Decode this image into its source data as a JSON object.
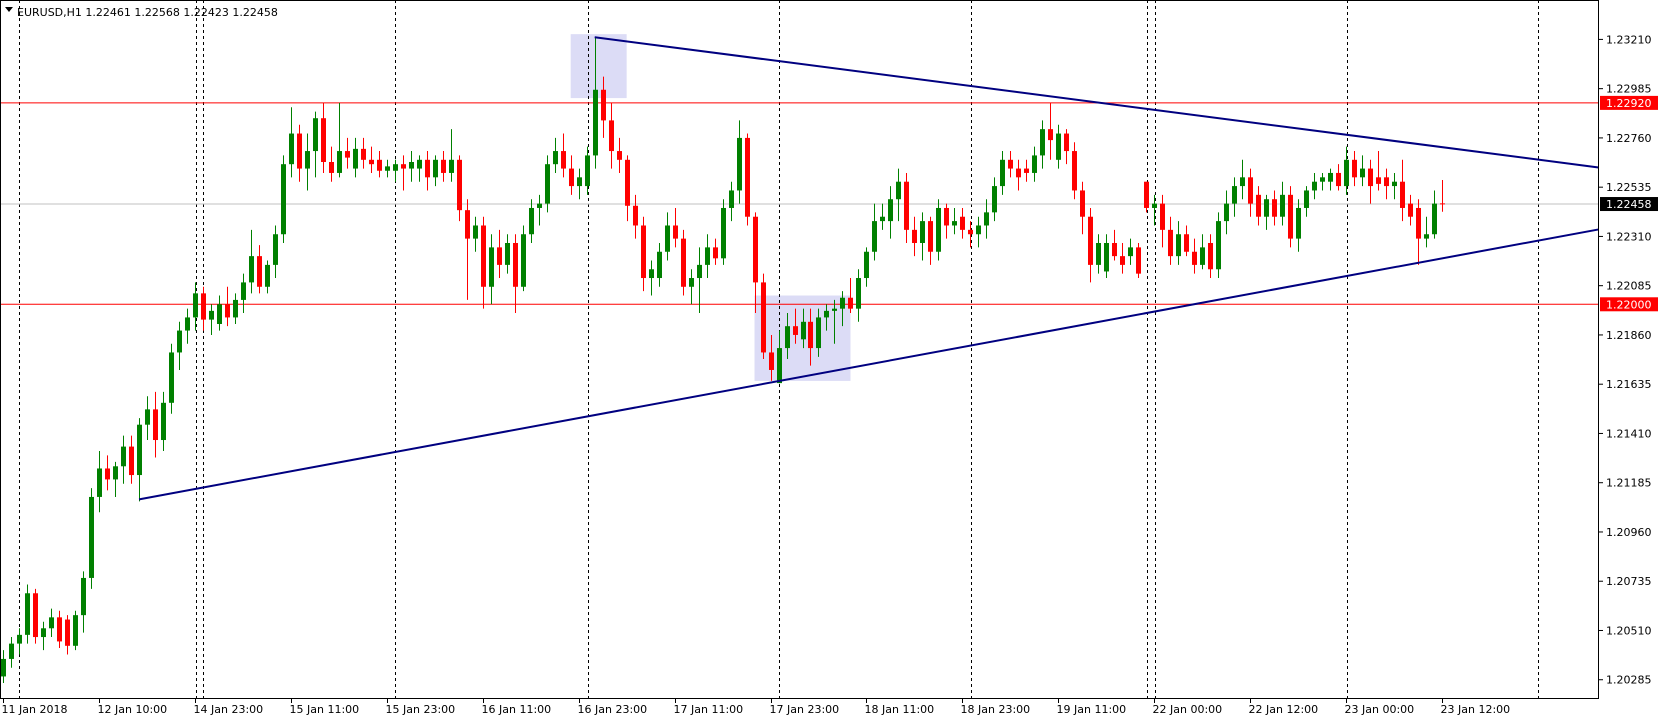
{
  "chart_data": {
    "type": "candlestick",
    "title": "EURUSD,H1  1.22461 1.22568 1.22423 1.22458",
    "categories": [
      "11 Jan 2018",
      null,
      null,
      null,
      null,
      null,
      null,
      null,
      null,
      null,
      null,
      null,
      "12 Jan 10:00",
      null,
      null,
      null,
      null,
      null,
      null,
      null,
      null,
      null,
      null,
      null,
      "14 Jan 23:00",
      null,
      null,
      null,
      null,
      null,
      null,
      null,
      null,
      null,
      null,
      null,
      "15 Jan 11:00",
      null,
      null,
      null,
      null,
      null,
      null,
      null,
      null,
      null,
      null,
      null,
      "15 Jan 23:00",
      null,
      null,
      null,
      null,
      null,
      null,
      null,
      null,
      null,
      null,
      null,
      "16 Jan 11:00",
      null,
      null,
      null,
      null,
      null,
      null,
      null,
      null,
      null,
      null,
      null,
      "16 Jan 23:00",
      null,
      null,
      null,
      null,
      null,
      null,
      null,
      null,
      null,
      null,
      null,
      "17 Jan 11:00",
      null,
      null,
      null,
      null,
      null,
      null,
      null,
      null,
      null,
      null,
      null,
      "17 Jan 23:00",
      null,
      null,
      null,
      null,
      null,
      null,
      null,
      null,
      null,
      null,
      null,
      "18 Jan 11:00",
      null,
      null,
      null,
      null,
      null,
      null,
      null,
      null,
      null,
      null,
      null,
      "18 Jan 23:00",
      null,
      null,
      null,
      null,
      null,
      null,
      null,
      null,
      null,
      null,
      null,
      "19 Jan 11:00",
      null,
      null,
      null,
      null,
      null,
      null,
      null,
      null,
      null,
      null,
      null,
      "22 Jan 00:00",
      null,
      null,
      null,
      null,
      null,
      null,
      null,
      null,
      null,
      null,
      null,
      "22 Jan 12:00",
      null,
      null,
      null,
      null,
      null,
      null,
      null,
      null,
      null,
      null,
      null,
      "23 Jan 00:00",
      null,
      null,
      null,
      null,
      null,
      null,
      null,
      null,
      null,
      null,
      null,
      "23 Jan 12:00"
    ],
    "open": [
      1.203,
      1.2038,
      1.2045,
      1.2049,
      1.2068,
      1.2048,
      1.2052,
      1.2057,
      1.2056,
      1.2044,
      1.2058,
      1.2075,
      1.2112,
      1.2125,
      1.212,
      1.2126,
      1.2135,
      1.2122,
      1.2145,
      1.2152,
      1.2138,
      1.2155,
      1.2178,
      1.2188,
      1.2194,
      1.2205,
      1.2193,
      1.2191,
      1.22,
      1.2194,
      1.2202,
      1.221,
      1.2222,
      1.2208,
      1.2218,
      1.2232,
      1.2264,
      1.2278,
      1.2262,
      1.227,
      1.2285,
      1.2265,
      1.226,
      1.227,
      1.2262,
      1.2271,
      1.2266,
      1.2266,
      1.2261,
      1.2261,
      1.2264,
      1.2262,
      1.2262,
      1.2266,
      1.2258,
      1.2266,
      1.226,
      1.2266,
      1.2243,
      1.223,
      1.2236,
      1.2208,
      1.2226,
      1.2218,
      1.2228,
      1.2208,
      1.2232,
      1.2244,
      1.2246,
      1.2264,
      1.227,
      1.2262,
      1.2254,
      1.2254,
      1.2268,
      1.2298,
      1.2284,
      1.227,
      1.2266,
      1.2245,
      1.2236,
      1.2212,
      1.2212,
      1.2224,
      1.2236,
      1.223,
      1.2208,
      1.2212,
      1.2218,
      1.2226,
      1.2221,
      1.2244,
      1.2252,
      1.2276,
      1.224,
      1.221,
      1.2178,
      1.2164,
      1.218,
      1.219,
      1.2184,
      1.2192,
      1.218,
      1.2194,
      1.2197,
      1.2198,
      1.2203,
      1.2198,
      1.2212,
      1.2224,
      1.2238,
      1.2238,
      1.2248,
      1.2256,
      1.2234,
      1.2228,
      1.2238,
      1.2224,
      1.2244,
      1.2236,
      1.224,
      1.2234,
      1.2232,
      1.2236,
      1.2242,
      1.2254,
      1.2266,
      1.2262,
      1.2262,
      1.226,
      1.2268,
      1.228,
      1.2266,
      1.2278,
      1.227,
      1.2252,
      1.224,
      1.2218,
      1.2215,
      1.2228,
      1.2222,
      1.2222,
      1.2226,
      1.2256,
      1.2244,
      1.2246,
      1.2234,
      1.2222,
      1.2232,
      1.2224,
      1.2218,
      1.2228,
      1.2216,
      1.2238,
      1.2246,
      1.2254,
      1.2258,
      1.225,
      1.224,
      1.2248,
      1.224,
      1.225,
      1.223,
      1.2244,
      1.2252,
      1.2256,
      1.2256,
      1.226,
      1.2254,
      1.2266,
      1.2258,
      1.2262,
      1.2258,
      1.2258,
      1.2254,
      1.2256,
      1.2246,
      1.2244,
      1.223,
      1.2232,
      1.22461
    ],
    "high": [
      1.2042,
      1.2048,
      1.2052,
      1.2072,
      1.207,
      1.2055,
      1.2061,
      1.206,
      1.2058,
      1.206,
      1.2078,
      1.2116,
      1.2133,
      1.2131,
      1.2128,
      1.214,
      1.214,
      1.2148,
      1.2158,
      1.216,
      1.216,
      1.2182,
      1.2192,
      1.2198,
      1.221,
      1.2208,
      1.22,
      1.2204,
      1.2208,
      1.2205,
      1.2214,
      1.2234,
      1.2227,
      1.222,
      1.2236,
      1.2268,
      1.229,
      1.2282,
      1.2278,
      1.2288,
      1.2292,
      1.2272,
      1.2292,
      1.2276,
      1.2276,
      1.2276,
      1.2272,
      1.227,
      1.2266,
      1.2266,
      1.2268,
      1.227,
      1.2268,
      1.227,
      1.2268,
      1.227,
      1.228,
      1.2268,
      1.2248,
      1.224,
      1.224,
      1.2232,
      1.2234,
      1.2232,
      1.2232,
      1.2236,
      1.2248,
      1.225,
      1.2268,
      1.2276,
      1.2278,
      1.2268,
      1.2262,
      1.2272,
      1.2322,
      1.2304,
      1.2292,
      1.2276,
      1.2268,
      1.225,
      1.224,
      1.222,
      1.2228,
      1.2242,
      1.2244,
      1.2234,
      1.2216,
      1.2226,
      1.2232,
      1.223,
      1.2248,
      1.2256,
      1.2284,
      1.2278,
      1.2242,
      1.2214,
      1.2186,
      1.2188,
      1.2196,
      1.2198,
      1.2198,
      1.2198,
      1.2198,
      1.22,
      1.2202,
      1.2206,
      1.2212,
      1.2216,
      1.2226,
      1.2246,
      1.2246,
      1.2254,
      1.2262,
      1.226,
      1.224,
      1.2242,
      1.224,
      1.2248,
      1.2246,
      1.2244,
      1.2244,
      1.2238,
      1.224,
      1.2248,
      1.2258,
      1.227,
      1.227,
      1.2266,
      1.2266,
      1.2272,
      1.2284,
      1.2292,
      1.2282,
      1.228,
      1.2274,
      1.2256,
      1.2244,
      1.2232,
      1.2232,
      1.2234,
      1.2228,
      1.223,
      1.2228,
      1.2256,
      1.225,
      1.225,
      1.224,
      1.2238,
      1.2236,
      1.223,
      1.2232,
      1.2232,
      1.2242,
      1.2252,
      1.2258,
      1.2266,
      1.2262,
      1.2254,
      1.225,
      1.2252,
      1.2256,
      1.2254,
      1.2248,
      1.2254,
      1.226,
      1.226,
      1.2262,
      1.2264,
      1.2272,
      1.227,
      1.2268,
      1.2266,
      1.227,
      1.2262,
      1.226,
      1.2266,
      1.225,
      1.2248,
      1.224,
      1.2252,
      1.22568
    ],
    "low": [
      1.2027,
      1.2034,
      1.204,
      1.2045,
      1.2045,
      1.2042,
      1.2048,
      1.2043,
      1.204,
      1.2042,
      1.205,
      1.207,
      1.2105,
      1.2115,
      1.2112,
      1.2118,
      1.2118,
      1.211,
      1.2138,
      1.213,
      1.2133,
      1.215,
      1.217,
      1.2182,
      1.2188,
      1.2188,
      1.2186,
      1.2188,
      1.219,
      1.2191,
      1.2196,
      1.2205,
      1.2205,
      1.2205,
      1.2212,
      1.2228,
      1.2258,
      1.2256,
      1.2252,
      1.2258,
      1.226,
      1.2256,
      1.2258,
      1.2262,
      1.2258,
      1.2262,
      1.226,
      1.2258,
      1.2258,
      1.2256,
      1.2252,
      1.2256,
      1.2256,
      1.2252,
      1.2254,
      1.2256,
      1.2256,
      1.2238,
      1.2202,
      1.2224,
      1.2198,
      1.22,
      1.2212,
      1.2214,
      1.2196,
      1.2206,
      1.2228,
      1.2236,
      1.2242,
      1.226,
      1.2258,
      1.225,
      1.2248,
      1.225,
      1.2262,
      1.2276,
      1.2262,
      1.226,
      1.2238,
      1.223,
      1.2206,
      1.2204,
      1.2208,
      1.222,
      1.2226,
      1.2204,
      1.22,
      1.2196,
      1.2212,
      1.2218,
      1.2218,
      1.2238,
      1.2246,
      1.2236,
      1.2196,
      1.2175,
      1.2165,
      1.2164,
      1.2175,
      1.2182,
      1.218,
      1.2172,
      1.2176,
      1.2188,
      1.2182,
      1.219,
      1.2196,
      1.2192,
      1.2208,
      1.222,
      1.2234,
      1.223,
      1.2238,
      1.2228,
      1.2222,
      1.222,
      1.2218,
      1.222,
      1.223,
      1.2232,
      1.223,
      1.2226,
      1.2226,
      1.223,
      1.2238,
      1.225,
      1.2258,
      1.2252,
      1.2256,
      1.2256,
      1.2262,
      1.2266,
      1.2262,
      1.2264,
      1.2248,
      1.2232,
      1.221,
      1.2214,
      1.2212,
      1.222,
      1.2214,
      1.2218,
      1.2212,
      1.2242,
      1.2236,
      1.2226,
      1.2218,
      1.2218,
      1.2222,
      1.2214,
      1.2216,
      1.2212,
      1.2212,
      1.2232,
      1.224,
      1.2248,
      1.224,
      1.2236,
      1.2234,
      1.2236,
      1.2236,
      1.2226,
      1.2224,
      1.224,
      1.2248,
      1.2252,
      1.2252,
      1.2252,
      1.225,
      1.2254,
      1.2254,
      1.2246,
      1.2252,
      1.2248,
      1.2248,
      1.2238,
      1.2236,
      1.2218,
      1.2226,
      1.223,
      1.22423
    ],
    "close": [
      1.2038,
      1.2045,
      1.2049,
      1.2068,
      1.2048,
      1.2052,
      1.2057,
      1.2046,
      1.2044,
      1.2058,
      1.2075,
      1.2112,
      1.2125,
      1.212,
      1.2126,
      1.2135,
      1.2122,
      1.2145,
      1.2152,
      1.2138,
      1.2155,
      1.2178,
      1.2188,
      1.2194,
      1.2205,
      1.2193,
      1.2197,
      1.22,
      1.2194,
      1.2202,
      1.221,
      1.2222,
      1.2208,
      1.2218,
      1.2232,
      1.2264,
      1.2278,
      1.2262,
      1.227,
      1.2285,
      1.2265,
      1.226,
      1.227,
      1.2267,
      1.2271,
      1.2266,
      1.2264,
      1.2261,
      1.2263,
      1.2264,
      1.2262,
      1.2265,
      1.2266,
      1.2258,
      1.2266,
      1.226,
      1.2266,
      1.2243,
      1.223,
      1.2236,
      1.2208,
      1.2226,
      1.2218,
      1.2228,
      1.2208,
      1.2232,
      1.2244,
      1.2246,
      1.2264,
      1.227,
      1.2262,
      1.2254,
      1.2258,
      1.2268,
      1.2298,
      1.2284,
      1.227,
      1.2266,
      1.2245,
      1.2236,
      1.2212,
      1.2216,
      1.2224,
      1.2236,
      1.223,
      1.2208,
      1.2212,
      1.2218,
      1.2226,
      1.2221,
      1.2244,
      1.2252,
      1.2276,
      1.224,
      1.221,
      1.2178,
      1.217,
      1.218,
      1.219,
      1.2186,
      1.2192,
      1.218,
      1.2194,
      1.2197,
      1.2198,
      1.2203,
      1.2198,
      1.2212,
      1.2224,
      1.2238,
      1.224,
      1.2248,
      1.2256,
      1.2234,
      1.2228,
      1.2238,
      1.2224,
      1.2244,
      1.2236,
      1.2238,
      1.2234,
      1.2232,
      1.2236,
      1.2242,
      1.2254,
      1.2266,
      1.2262,
      1.2258,
      1.226,
      1.2268,
      1.228,
      1.2275,
      1.2278,
      1.227,
      1.2252,
      1.224,
      1.2218,
      1.2228,
      1.2228,
      1.2222,
      1.2218,
      1.2226,
      1.2214,
      1.2244,
      1.2246,
      1.2234,
      1.2222,
      1.2232,
      1.2224,
      1.2218,
      1.2226,
      1.2216,
      1.2238,
      1.2246,
      1.2254,
      1.2258,
      1.2246,
      1.224,
      1.2248,
      1.224,
      1.225,
      1.223,
      1.2244,
      1.2252,
      1.2256,
      1.2258,
      1.226,
      1.2254,
      1.2266,
      1.2258,
      1.2262,
      1.2254,
      1.2255,
      1.2254,
      1.2256,
      1.2244,
      1.224,
      1.223,
      1.2232,
      1.2246,
      1.22458
    ],
    "up_color": "#008000",
    "down_color": "#ff0000",
    "ylim": [
      1.20197,
      1.2339
    ],
    "yticks": [
      {
        "value": 1.2321,
        "label": "1.23210"
      },
      1.22985,
      {
        "value": 1.2276,
        "label": "1.22760"
      },
      1.22535,
      {
        "value": 1.2231,
        "label": "1.22310"
      },
      1.22085,
      {
        "value": 1.2186,
        "label": "1.21860"
      },
      1.21635,
      {
        "value": 1.2141,
        "label": "1.21410"
      },
      1.21185,
      {
        "value": 1.2096,
        "label": "1.20960"
      },
      1.20735,
      {
        "value": 1.2051,
        "label": "1.20510"
      },
      1.20285
    ],
    "levels": [
      {
        "value": 1.2292,
        "label": "1.22920",
        "color": "#ff0000"
      },
      {
        "value": 1.22,
        "label": "1.22000",
        "color": "#ff0000"
      }
    ],
    "bid_line": 1.22458,
    "bid_color": "#c0c0c0",
    "trendlines": [
      {
        "x": [
          74,
          199.6
        ],
        "y": [
          1.2322,
          1.22625
        ],
        "color": "#000080"
      },
      {
        "x": [
          17,
          199.6
        ],
        "y": [
          1.21109,
          1.22342
        ],
        "color": "#000080"
      }
    ],
    "rectangles": [
      {
        "x": [
          71,
          78
        ],
        "y": [
          1.22942,
          1.23234
        ],
        "color": "#dcdcf6"
      },
      {
        "x": [
          94,
          106
        ],
        "y": [
          1.2165,
          1.2204
        ],
        "color": "#dcdcf6"
      }
    ]
  }
}
